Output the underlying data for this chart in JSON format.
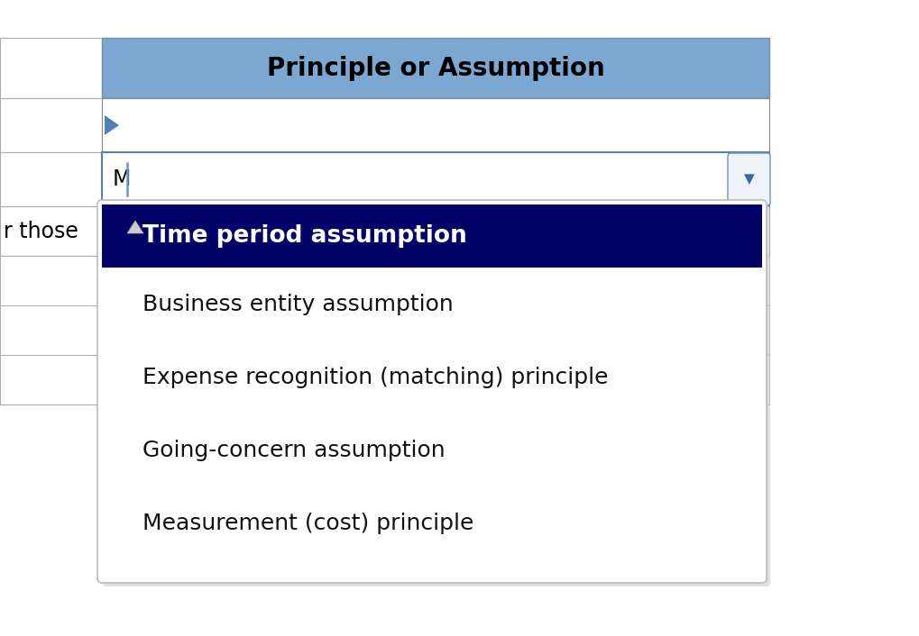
{
  "bg_color": "#FFFFFF",
  "header_text": "Principle or Assumption",
  "header_bg": "#7BA7D1",
  "header_text_color": "#000000",
  "header_font_size": 20,
  "left_col_bg": "#FFFFFF",
  "left_col_border": "#AAAAAA",
  "row2_text": "M",
  "row3_left_text": "r those",
  "table_border_color": "#888888",
  "table_bg": "#FFFFFF",
  "arrow_fill": "#5080B8",
  "cursor_color": "#6699CC",
  "dropdown_btn_border": "#7090C0",
  "dropdown_btn_bg": "#EEF3FA",
  "dropdown_arrow_color": "#3366AA",
  "selected_item_bg": "#000066",
  "selected_item_text": "Time period assumption",
  "selected_item_color": "#FFFFFF",
  "selected_item_font_size": 19,
  "items": [
    "Business entity assumption",
    "Expense recognition (matching) principle",
    "Going-concern assumption",
    "Measurement (cost) principle"
  ],
  "item_color": "#111111",
  "item_font_size": 18,
  "dropdown_border_color": "#BBBBBB",
  "dropdown_shadow_color": "#CCCCCC",
  "up_arrow_color": "#CCCCCC",
  "top_white_bg": "#FFFFFF"
}
